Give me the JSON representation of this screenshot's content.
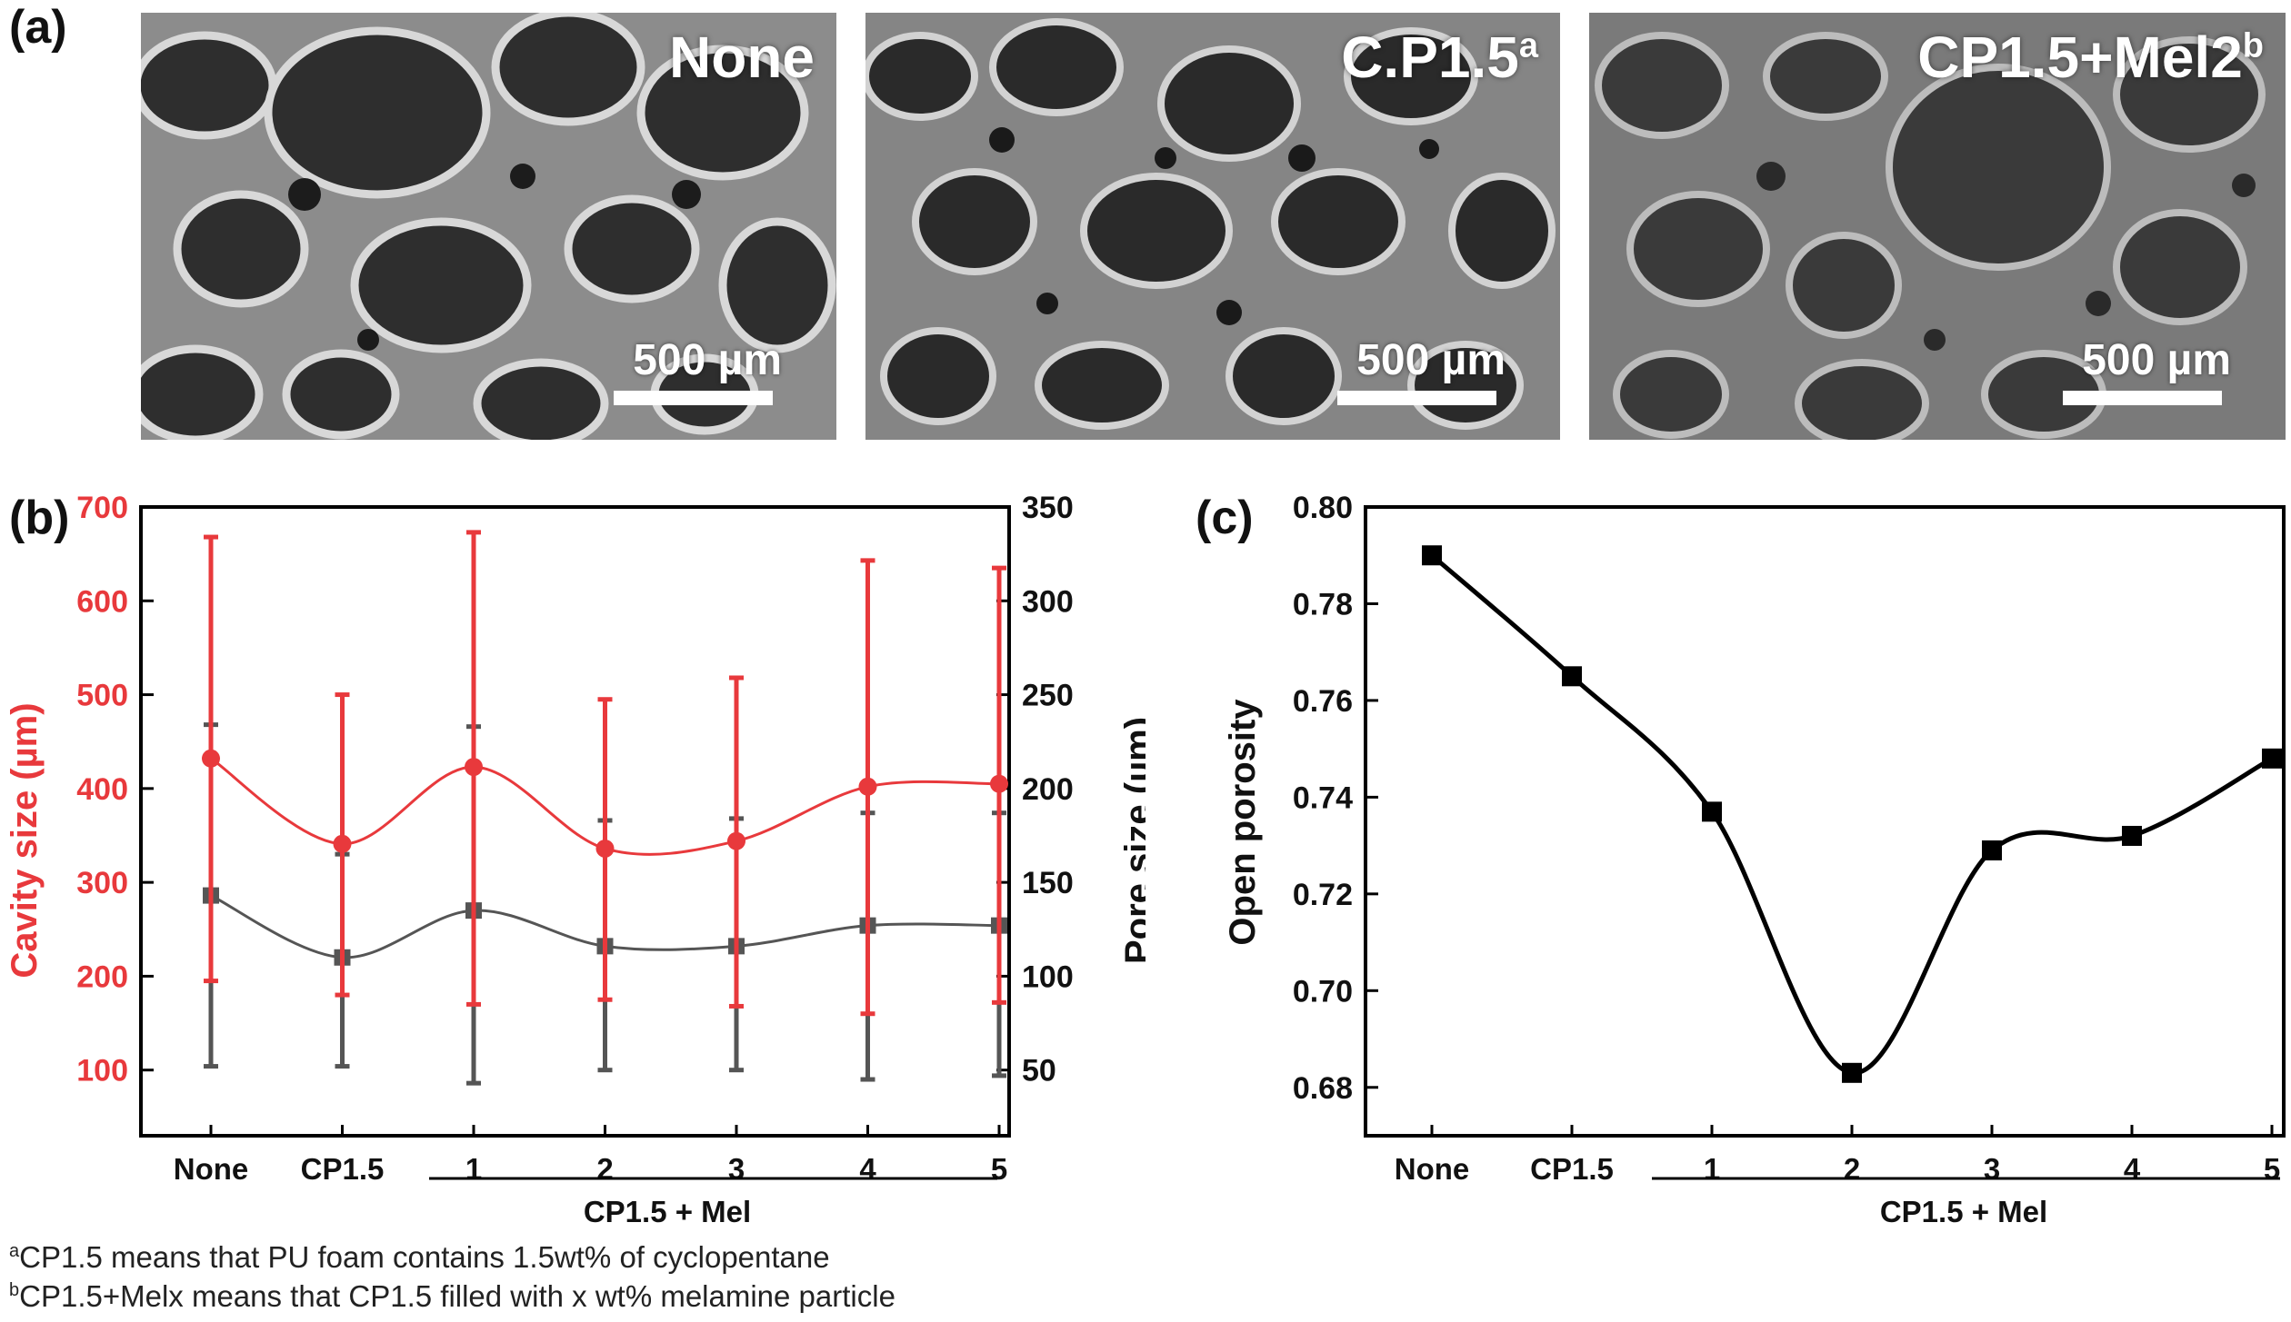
{
  "panel_labels": {
    "a": "(a)",
    "b": "(b)",
    "c": "(c)"
  },
  "sem_images": [
    {
      "label": "None",
      "sup": "",
      "scalebar": "500 µm"
    },
    {
      "label": "C.P1.5",
      "sup": "a",
      "scalebar": "500 µm"
    },
    {
      "label": "CP1.5+Mel2",
      "sup": "b",
      "scalebar": "500 µm"
    }
  ],
  "footnotes": [
    {
      "sup": "a",
      "text": "CP1.5 means that PU foam contains 1.5wt% of cyclopentane"
    },
    {
      "sup": "b",
      "text": "CP1.5+Melx means that CP1.5 filled with x wt% melamine particle"
    }
  ],
  "colors": {
    "cavity": "#e8393c",
    "pore": "#555555",
    "porosity": "#000000"
  },
  "chart_data": [
    {
      "type": "line",
      "panel": "(b)",
      "categories": [
        "None",
        "CP1.5",
        "1",
        "2",
        "3",
        "4",
        "5"
      ],
      "group_label": "CP1.5 + Mel",
      "group_categories": [
        "1",
        "2",
        "3",
        "4",
        "5"
      ],
      "y_left": {
        "label": "Cavity size (µm)",
        "lim": [
          30,
          700
        ],
        "ticks": [
          100,
          200,
          300,
          400,
          500,
          600,
          700
        ]
      },
      "y_right": {
        "label": "Pore size (µm)",
        "lim": [
          15,
          350
        ],
        "ticks": [
          50,
          100,
          150,
          200,
          250,
          300,
          350
        ]
      },
      "series": [
        {
          "axis": "left",
          "values": [
            432,
            341,
            423,
            336,
            344,
            402,
            405
          ],
          "err_low": [
            195,
            180,
            170,
            175,
            168,
            160,
            172
          ],
          "err_high": [
            668,
            500,
            673,
            495,
            518,
            643,
            635
          ]
        },
        {
          "axis": "right",
          "values": [
            143,
            110,
            135,
            116,
            116,
            127,
            127
          ],
          "err_low": [
            52,
            52,
            43,
            50,
            50,
            45,
            47
          ],
          "err_high": [
            234,
            165,
            233,
            183,
            184,
            187,
            187
          ]
        }
      ]
    },
    {
      "type": "line",
      "panel": "(c)",
      "categories": [
        "None",
        "CP1.5",
        "1",
        "2",
        "3",
        "4",
        "5"
      ],
      "group_label": "CP1.5 + Mel",
      "group_categories": [
        "1",
        "2",
        "3",
        "4",
        "5"
      ],
      "ylabel": "Open porosity",
      "ylim": [
        0.67,
        0.8
      ],
      "yticks": [
        "0.68",
        "0.70",
        "0.72",
        "0.74",
        "0.76",
        "0.78",
        "0.80"
      ],
      "series": [
        {
          "values": [
            0.79,
            0.765,
            0.737,
            0.683,
            0.729,
            0.732,
            0.748
          ]
        }
      ]
    }
  ]
}
